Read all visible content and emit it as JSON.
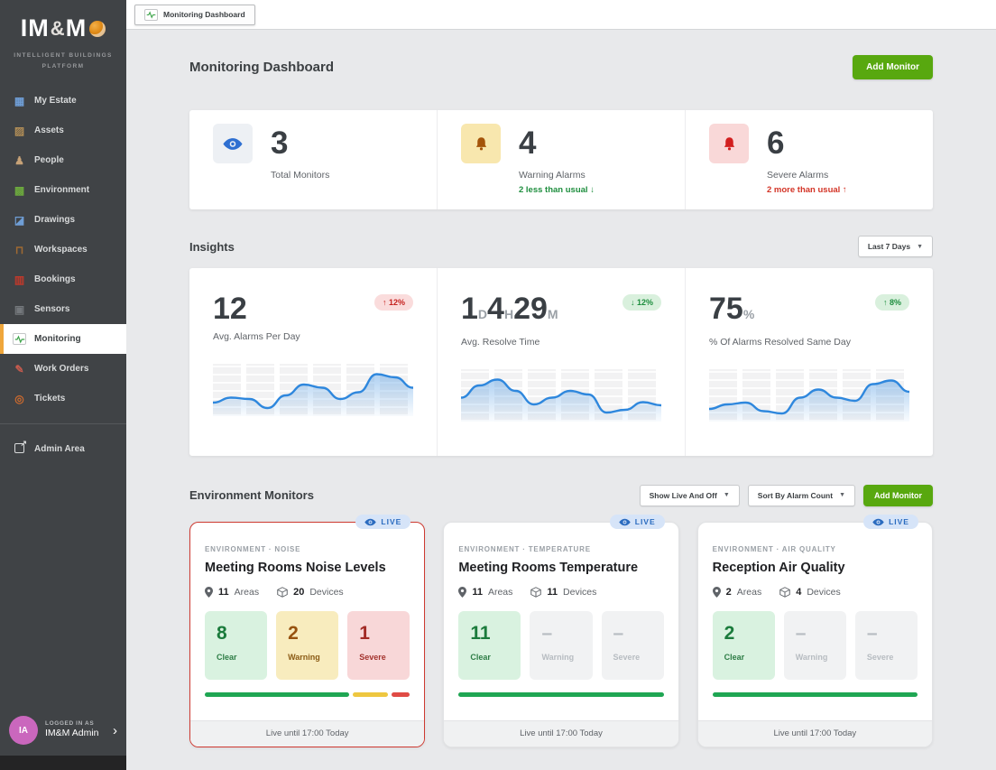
{
  "colors": {
    "accent_green": "#58a80f",
    "alert_red": "#ce3a31",
    "live_blue": "#2a6bbf",
    "spark_blue": "#2e87dd"
  },
  "sidebar": {
    "logo": {
      "part1": "IM",
      "amp": "&",
      "part2": "M",
      "subtitle1": "INTELLIGENT BUILDINGS",
      "subtitle2": "PLATFORM"
    },
    "items": [
      {
        "label": "My Estate"
      },
      {
        "label": "Assets"
      },
      {
        "label": "People"
      },
      {
        "label": "Environment"
      },
      {
        "label": "Drawings"
      },
      {
        "label": "Workspaces"
      },
      {
        "label": "Bookings"
      },
      {
        "label": "Sensors"
      },
      {
        "label": "Monitoring"
      },
      {
        "label": "Work Orders"
      },
      {
        "label": "Tickets"
      }
    ],
    "admin_label": "Admin Area",
    "user": {
      "initials": "IA",
      "eyebrow": "LOGGED IN AS",
      "name": "IM&M Admin",
      "chevron": "›"
    }
  },
  "tab": {
    "label": "Monitoring Dashboard"
  },
  "header": {
    "title": "Monitoring Dashboard",
    "add_button": "Add Monitor"
  },
  "stats": {
    "items": [
      {
        "value": "3",
        "label": "Total Monitors",
        "note": ""
      },
      {
        "value": "4",
        "label": "Warning Alarms",
        "note": "2 less than usual ↓"
      },
      {
        "value": "6",
        "label": "Severe Alarms",
        "note": "2 more than usual ↑"
      }
    ]
  },
  "insights": {
    "title": "Insights",
    "range": "Last 7 Days",
    "range_caret": "▼",
    "cards": [
      {
        "value": "12",
        "badge": "↑ 12%",
        "label": "Avg. Alarms Per Day",
        "sparkline": [
          0.22,
          0.33,
          0.3,
          0.1,
          0.38,
          0.62,
          0.55,
          0.3,
          0.45,
          0.85,
          0.78,
          0.55
        ]
      },
      {
        "segments": [
          {
            "v": "1",
            "u": "D"
          },
          {
            "v": "4",
            "u": "H"
          },
          {
            "v": "29",
            "u": "M"
          }
        ],
        "badge": "↓ 12%",
        "label": "Avg. Resolve Time",
        "sparkline": [
          0.45,
          0.72,
          0.85,
          0.6,
          0.3,
          0.45,
          0.6,
          0.52,
          0.12,
          0.18,
          0.35,
          0.28
        ]
      },
      {
        "value": "75",
        "unit": "%",
        "badge": "↑ 8%",
        "label": "% Of Alarms Resolved Same Day",
        "sparkline": [
          0.2,
          0.3,
          0.34,
          0.15,
          0.1,
          0.45,
          0.63,
          0.45,
          0.38,
          0.75,
          0.83,
          0.58
        ]
      }
    ]
  },
  "monitors": {
    "title": "Environment Monitors",
    "filter": "Show Live And Off",
    "sort": "Sort By Alarm Count",
    "caret": "▼",
    "add_button": "Add Monitor",
    "cards": [
      {
        "live": "LIVE",
        "category": "ENVIRONMENT · NOISE",
        "title": "Meeting Rooms Noise Levels",
        "areas": "11",
        "areas_label": "Areas",
        "devices": "20",
        "devices_label": "Devices",
        "tiles": [
          {
            "value": "8",
            "label": "Clear"
          },
          {
            "value": "2",
            "label": "Warning"
          },
          {
            "value": "1",
            "label": "Severe"
          }
        ],
        "bar": [
          {
            "state": "clear",
            "weight": 8
          },
          {
            "state": "warning",
            "weight": 2
          },
          {
            "state": "severe",
            "weight": 1
          }
        ],
        "footer": "Live until 17:00 Today"
      },
      {
        "live": "LIVE",
        "category": "ENVIRONMENT · TEMPERATURE",
        "title": "Meeting Rooms Temperature",
        "areas": "11",
        "areas_label": "Areas",
        "devices": "11",
        "devices_label": "Devices",
        "tiles": [
          {
            "value": "11",
            "label": "Clear"
          },
          {
            "value": "–",
            "label": "Warning"
          },
          {
            "value": "–",
            "label": "Severe"
          }
        ],
        "bar": [
          {
            "state": "clear",
            "weight": 1
          }
        ],
        "footer": "Live until 17:00 Today"
      },
      {
        "live": "LIVE",
        "category": "ENVIRONMENT · AIR QUALITY",
        "title": "Reception Air Quality",
        "areas": "2",
        "areas_label": "Areas",
        "devices": "4",
        "devices_label": "Devices",
        "tiles": [
          {
            "value": "2",
            "label": "Clear"
          },
          {
            "value": "–",
            "label": "Warning"
          },
          {
            "value": "–",
            "label": "Severe"
          }
        ],
        "bar": [
          {
            "state": "clear",
            "weight": 1
          }
        ],
        "footer": "Live until 17:00 Today"
      }
    ]
  }
}
